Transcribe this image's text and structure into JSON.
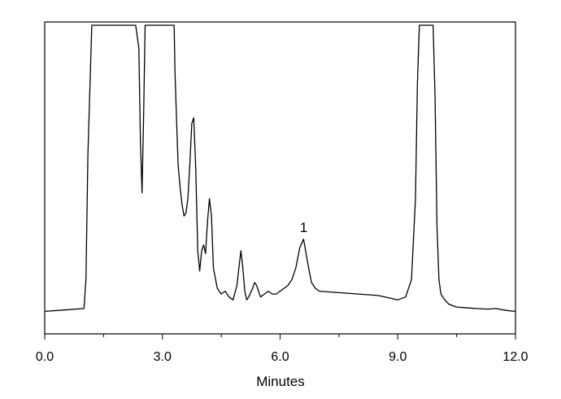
{
  "chart_data": {
    "type": "line",
    "title": "",
    "xlabel": "Minutes",
    "ylabel": "",
    "xlim": [
      0,
      12
    ],
    "ylim": [
      0,
      100
    ],
    "xticks": [
      0,
      3,
      6,
      9,
      12
    ],
    "xtick_labels": [
      "0.0",
      "3.0",
      "6.0",
      "9.0",
      "12.0"
    ],
    "grid": false,
    "legend": "none",
    "line_color": "#000000",
    "series": [
      {
        "x": [
          0.0,
          0.5,
          1.0,
          1.05,
          1.1,
          1.2,
          1.3,
          2.2,
          2.32,
          2.4,
          2.44,
          2.48,
          2.52,
          2.56,
          2.6,
          2.7,
          3.2,
          3.3,
          3.32,
          3.35,
          3.4,
          3.45,
          3.5,
          3.55,
          3.6,
          3.65,
          3.7,
          3.75,
          3.8,
          3.85,
          3.9,
          3.95,
          4.0,
          4.05,
          4.1,
          4.15,
          4.2,
          4.25,
          4.3,
          4.4,
          4.5,
          4.6,
          4.7,
          4.8,
          4.9,
          4.95,
          5.0,
          5.05,
          5.1,
          5.15,
          5.2,
          5.3,
          5.35,
          5.4,
          5.5,
          5.6,
          5.7,
          5.8,
          5.9,
          6.0,
          6.1,
          6.2,
          6.3,
          6.4,
          6.5,
          6.6,
          6.7,
          6.8,
          6.9,
          7.0,
          7.5,
          8.0,
          8.5,
          9.0,
          9.2,
          9.35,
          9.45,
          9.5,
          9.55,
          9.6,
          9.7,
          9.8,
          9.9,
          9.95,
          10.0,
          10.05,
          10.1,
          10.2,
          10.3,
          10.5,
          10.8,
          11.0,
          11.3,
          11.5,
          11.7,
          11.85,
          12.0
        ],
        "y": [
          1,
          1.5,
          2,
          12,
          55,
          100,
          100,
          100,
          100,
          92,
          60,
          42,
          68,
          100,
          100,
          100,
          100,
          100,
          84,
          72,
          52,
          44,
          38,
          34,
          35,
          40,
          52,
          66,
          68,
          50,
          22,
          15,
          22,
          24,
          21,
          32,
          40,
          34,
          16,
          9,
          7,
          8,
          6,
          5,
          10,
          16,
          22,
          16,
          8,
          5,
          6,
          9,
          11,
          10,
          6,
          7,
          8,
          7,
          7,
          8,
          9,
          10,
          12,
          16,
          23,
          26,
          18,
          11,
          9,
          8,
          7.5,
          7,
          6.5,
          5,
          6,
          12,
          40,
          80,
          100,
          100,
          100,
          100,
          100,
          75,
          30,
          12,
          7,
          5,
          3.5,
          2.5,
          2.2,
          2,
          1.8,
          2,
          1.5,
          1.2,
          1
        ]
      }
    ],
    "annotations": [
      {
        "text": "1",
        "x": 6.6,
        "y": 29
      }
    ]
  }
}
